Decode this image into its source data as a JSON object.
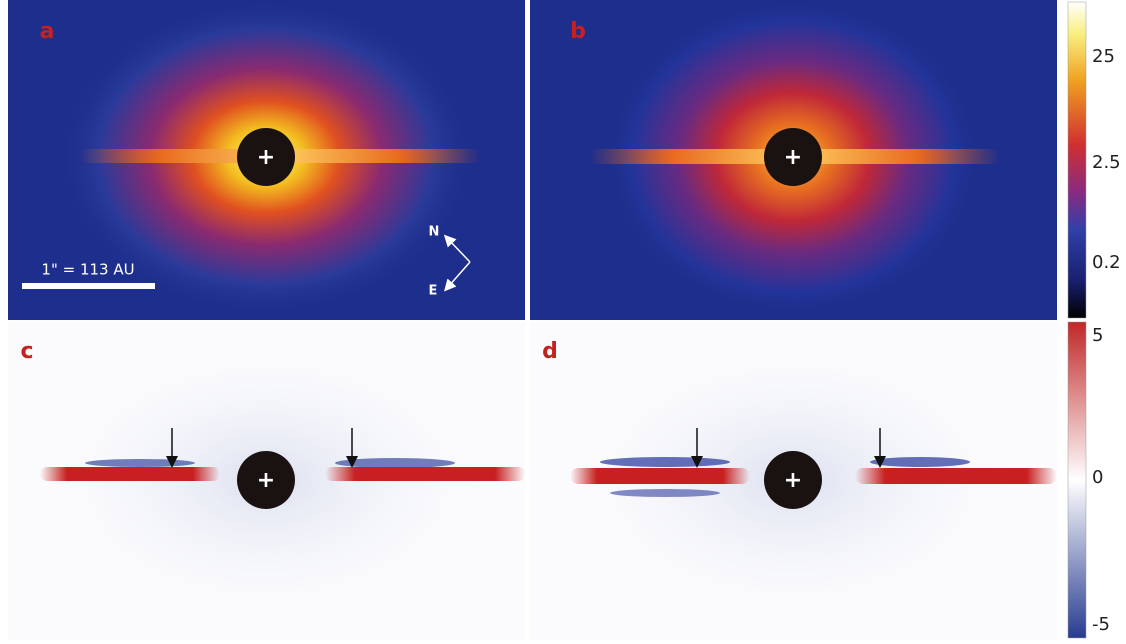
{
  "panels": [
    {
      "label": "a"
    },
    {
      "label": "b"
    },
    {
      "label": "c"
    },
    {
      "label": "d"
    }
  ],
  "star_marker": "+",
  "scale_bar": "1\" = 113 AU",
  "compass": {
    "north": "N",
    "east": "E"
  },
  "colorbars": [
    {
      "ticks": [
        "25",
        "2.5",
        "0.2"
      ]
    },
    {
      "ticks": [
        "5",
        "0",
        "-5"
      ]
    }
  ]
}
